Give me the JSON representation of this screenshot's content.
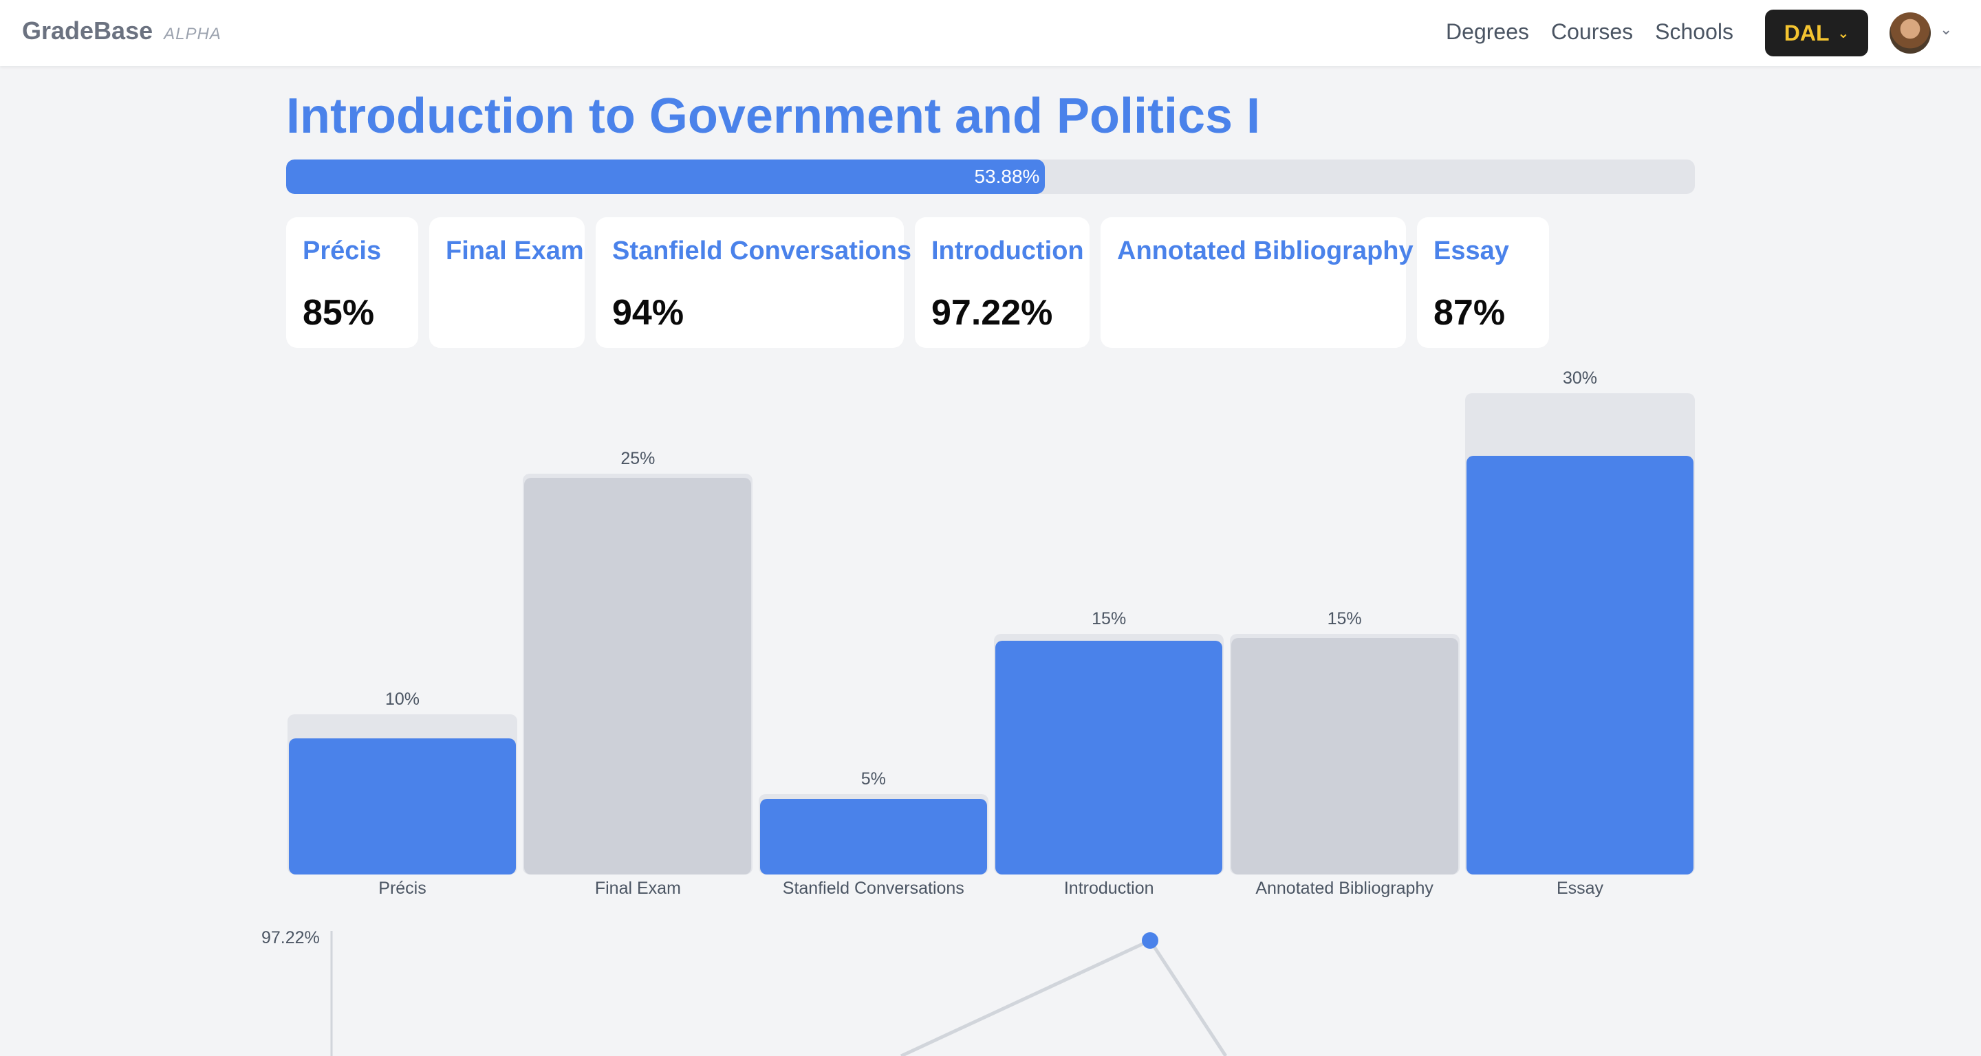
{
  "nav": {
    "brand": "GradeBase",
    "tag": "ALPHA",
    "links": [
      "Degrees",
      "Courses",
      "Schools"
    ],
    "school": "DAL",
    "avatar_icon": "user-avatar"
  },
  "course": {
    "title": "Introduction to Government and Politics I",
    "progress": 53.88,
    "progress_label": "53.88%"
  },
  "cards": [
    {
      "title": "Précis",
      "value": "85%"
    },
    {
      "title": "Final Exam",
      "value": ""
    },
    {
      "title": "Stanfield Conversations",
      "value": "94%"
    },
    {
      "title": "Introduction",
      "value": "97.22%"
    },
    {
      "title": "Annotated Bibliography",
      "value": ""
    },
    {
      "title": "Essay",
      "value": "87%"
    }
  ],
  "colors": {
    "accent": "#4a82ea",
    "ungraded": "#cdd0d8",
    "track": "#e3e5ea"
  },
  "chart_data": [
    {
      "type": "bar",
      "categories": [
        "Précis",
        "Final Exam",
        "Stanfield Conversations",
        "Introduction",
        "Annotated Bibliography",
        "Essay"
      ],
      "weights": [
        10,
        25,
        5,
        15,
        15,
        30
      ],
      "weight_labels": [
        "10%",
        "25%",
        "5%",
        "15%",
        "15%",
        "30%"
      ],
      "grades": [
        85,
        null,
        94,
        97.22,
        null,
        87
      ],
      "ylim": [
        0,
        30
      ]
    },
    {
      "type": "line",
      "y_tick_label": "97.22%",
      "points": [
        {
          "category": "Introduction",
          "value": 97.22
        }
      ]
    }
  ]
}
